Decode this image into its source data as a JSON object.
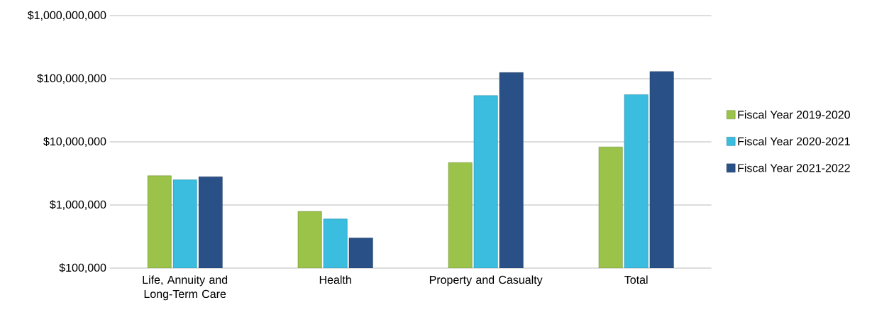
{
  "chart_data": {
    "type": "bar",
    "categories": [
      "Life, Annuity and Long-Term Care",
      "Health",
      "Property and Casualty",
      "Total"
    ],
    "series": [
      {
        "name": "Fiscal Year 2019-2020",
        "color": "#9bc34a",
        "values": [
          2900000,
          790000,
          4700000,
          8300000
        ]
      },
      {
        "name": "Fiscal Year 2020-2021",
        "color": "#3bbde0",
        "values": [
          2500000,
          600000,
          54000000,
          56000000
        ]
      },
      {
        "name": "Fiscal Year 2021-2022",
        "color": "#2a5187",
        "values": [
          2800000,
          300000,
          125000000,
          130000000
        ]
      }
    ],
    "log": "y",
    "ylim": [
      100000,
      1000000000
    ],
    "yticks": [
      {
        "value": 100000,
        "label": "$100,000"
      },
      {
        "value": 1000000,
        "label": "$1,000,000"
      },
      {
        "value": 10000000,
        "label": "$10,000,000"
      },
      {
        "value": 100000000,
        "label": "$100,000,000"
      },
      {
        "value": 1000000000,
        "label": "$1,000,000,000"
      }
    ],
    "grid": "y",
    "legend": "right"
  }
}
